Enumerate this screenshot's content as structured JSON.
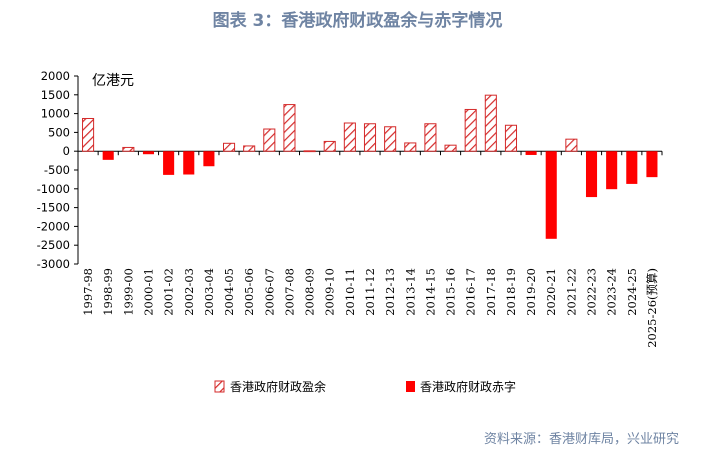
{
  "title": "图表 3：香港政府财政盈余与赤字情况",
  "source": "资料来源：香港财库局，兴业研究",
  "chart_data": {
    "type": "bar",
    "title": "图表 3：香港政府财政盈余与赤字情况",
    "unit_label": "亿港元",
    "ylim": [
      -3000,
      2000
    ],
    "y_ticks": [
      2000,
      1500,
      1000,
      500,
      0,
      -500,
      -1000,
      -1500,
      -2000,
      -2500,
      -3000
    ],
    "grid": false,
    "legend_position": "bottom",
    "categories": [
      "1997-98",
      "1998-99",
      "1999-00",
      "2000-01",
      "2001-02",
      "2002-03",
      "2003-04",
      "2004-05",
      "2005-06",
      "2006-07",
      "2007-08",
      "2008-09",
      "2009-10",
      "2010-11",
      "2011-12",
      "2012-13",
      "2013-14",
      "2014-15",
      "2015-16",
      "2016-17",
      "2017-18",
      "2018-19",
      "2019-20",
      "2020-21",
      "2021-22",
      "2022-23",
      "2023-24",
      "2024-25",
      "2025-26(预算)"
    ],
    "values": [
      870,
      -230,
      100,
      -80,
      -630,
      -620,
      -400,
      210,
      140,
      590,
      1240,
      10,
      260,
      750,
      730,
      650,
      220,
      730,
      160,
      1110,
      1490,
      690,
      -100,
      -2330,
      320,
      -1220,
      -1010,
      -870,
      -690
    ],
    "series": [
      {
        "name": "香港政府财政盈余",
        "color": "#d42a2a",
        "style": "hatched"
      },
      {
        "name": "香港政府财政赤字",
        "color": "#ff0000",
        "style": "solid"
      }
    ]
  }
}
